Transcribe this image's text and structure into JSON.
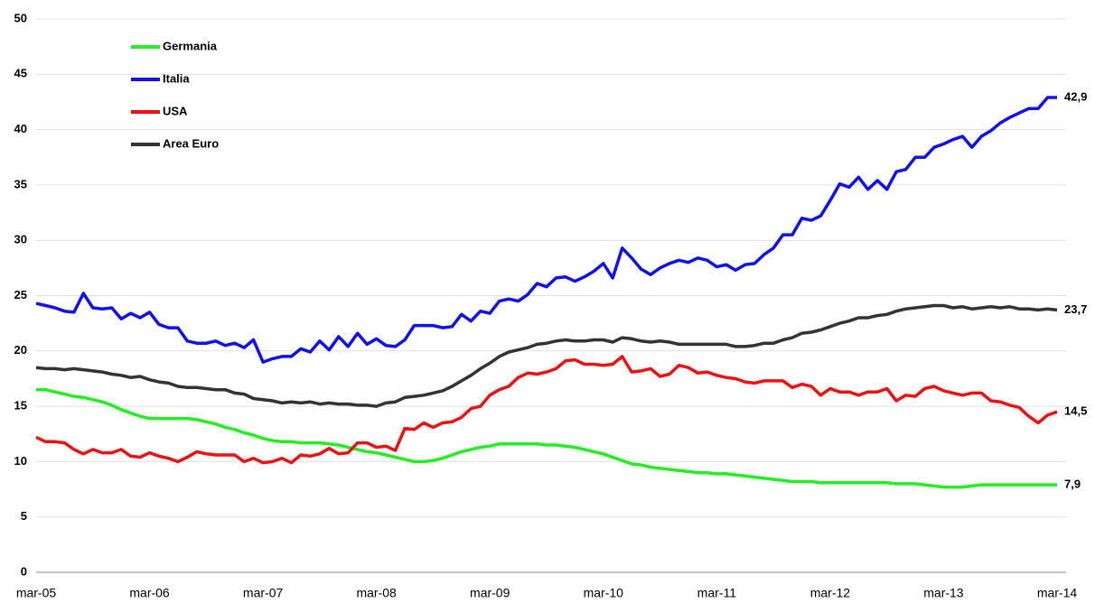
{
  "chart_data": {
    "type": "line",
    "categories": [
      "mar-05",
      null,
      null,
      null,
      null,
      null,
      null,
      null,
      null,
      null,
      null,
      null,
      "mar-06",
      null,
      null,
      null,
      null,
      null,
      null,
      null,
      null,
      null,
      null,
      null,
      "mar-07",
      null,
      null,
      null,
      null,
      null,
      null,
      null,
      null,
      null,
      null,
      null,
      "mar-08",
      null,
      null,
      null,
      null,
      null,
      null,
      null,
      null,
      null,
      null,
      null,
      "mar-09",
      null,
      null,
      null,
      null,
      null,
      null,
      null,
      null,
      null,
      null,
      null,
      "mar-10",
      null,
      null,
      null,
      null,
      null,
      null,
      null,
      null,
      null,
      null,
      null,
      "mar-11",
      null,
      null,
      null,
      null,
      null,
      null,
      null,
      null,
      null,
      null,
      null,
      "mar-12",
      null,
      null,
      null,
      null,
      null,
      null,
      null,
      null,
      null,
      null,
      null,
      "mar-13",
      null,
      null,
      null,
      null,
      null,
      null,
      null,
      null,
      null,
      null,
      null,
      "mar-14"
    ],
    "series": [
      {
        "name": "Germania",
        "color": "#22ee22",
        "values": [
          16.5,
          16.5,
          16.3,
          16.1,
          15.9,
          15.8,
          15.6,
          15.4,
          15.1,
          14.7,
          14.4,
          14.1,
          13.9,
          13.9,
          13.9,
          13.9,
          13.9,
          13.8,
          13.6,
          13.4,
          13.1,
          12.9,
          12.6,
          12.4,
          12.1,
          11.9,
          11.8,
          11.8,
          11.7,
          11.7,
          11.7,
          11.6,
          11.5,
          11.3,
          11.1,
          10.9,
          10.8,
          10.6,
          10.4,
          10.2,
          10.0,
          10.0,
          10.1,
          10.3,
          10.6,
          10.9,
          11.1,
          11.3,
          11.4,
          11.6,
          11.6,
          11.6,
          11.6,
          11.6,
          11.5,
          11.5,
          11.4,
          11.3,
          11.1,
          10.9,
          10.7,
          10.4,
          10.1,
          9.8,
          9.7,
          9.5,
          9.4,
          9.3,
          9.2,
          9.1,
          9.0,
          9.0,
          8.9,
          8.9,
          8.8,
          8.7,
          8.6,
          8.5,
          8.4,
          8.3,
          8.2,
          8.2,
          8.2,
          8.1,
          8.1,
          8.1,
          8.1,
          8.1,
          8.1,
          8.1,
          8.1,
          8.0,
          8.0,
          8.0,
          7.9,
          7.8,
          7.7,
          7.7,
          7.7,
          7.8,
          7.9,
          7.9,
          7.9,
          7.9,
          7.9,
          7.9,
          7.9,
          7.9,
          7.9
        ],
        "value_labels": [
          null,
          null,
          null,
          null,
          null,
          null,
          null,
          null,
          null,
          null,
          null,
          null,
          null,
          null,
          null,
          null,
          null,
          null,
          null,
          null,
          null,
          null,
          null,
          null,
          null,
          null,
          null,
          null,
          null,
          null,
          null,
          null,
          null,
          null,
          null,
          null,
          null,
          null,
          null,
          null,
          null,
          null,
          null,
          null,
          null,
          null,
          null,
          null,
          null,
          null,
          null,
          null,
          null,
          null,
          null,
          null,
          null,
          null,
          null,
          null,
          null,
          null,
          null,
          null,
          null,
          null,
          null,
          null,
          null,
          null,
          null,
          null,
          null,
          null,
          null,
          null,
          null,
          null,
          null,
          null,
          null,
          null,
          null,
          null,
          null,
          null,
          null,
          null,
          null,
          null,
          null,
          null,
          null,
          null,
          null,
          null,
          null,
          null,
          null,
          null,
          null,
          null,
          null,
          null,
          null,
          null,
          null,
          null,
          "7,9"
        ]
      },
      {
        "name": "Italia",
        "color": "#1111ee",
        "values": [
          24.3,
          24.1,
          23.9,
          23.6,
          23.5,
          25.2,
          23.9,
          23.8,
          23.9,
          22.9,
          23.4,
          23.0,
          23.5,
          22.4,
          22.1,
          22.1,
          20.9,
          20.7,
          20.7,
          20.9,
          20.5,
          20.7,
          20.3,
          21.0,
          19.0,
          19.3,
          19.5,
          19.5,
          20.2,
          19.9,
          20.9,
          20.1,
          21.3,
          20.4,
          21.6,
          20.6,
          21.1,
          20.5,
          20.4,
          21.0,
          22.3,
          22.3,
          22.3,
          22.1,
          22.2,
          23.3,
          22.7,
          23.6,
          23.4,
          24.5,
          24.7,
          24.5,
          25.1,
          26.1,
          25.8,
          26.6,
          26.7,
          26.3,
          26.7,
          27.2,
          27.9,
          26.6,
          29.3,
          28.4,
          27.4,
          26.9,
          27.5,
          27.9,
          28.2,
          28.0,
          28.4,
          28.2,
          27.6,
          27.8,
          27.3,
          27.8,
          27.9,
          28.7,
          29.3,
          30.5,
          30.5,
          32.0,
          31.8,
          32.2,
          33.6,
          35.1,
          34.8,
          35.7,
          34.6,
          35.4,
          34.6,
          36.2,
          36.4,
          37.5,
          37.5,
          38.4,
          38.7,
          39.1,
          39.4,
          38.4,
          39.4,
          39.9,
          40.6,
          41.1,
          41.5,
          41.9,
          41.9,
          42.9,
          42.9
        ],
        "value_labels": [
          null,
          null,
          null,
          null,
          null,
          null,
          null,
          null,
          null,
          null,
          null,
          null,
          null,
          null,
          null,
          null,
          null,
          null,
          null,
          null,
          null,
          null,
          null,
          null,
          null,
          null,
          null,
          null,
          null,
          null,
          null,
          null,
          null,
          null,
          null,
          null,
          null,
          null,
          null,
          null,
          null,
          null,
          null,
          null,
          null,
          null,
          null,
          null,
          null,
          null,
          null,
          null,
          null,
          null,
          null,
          null,
          null,
          null,
          null,
          null,
          null,
          null,
          null,
          null,
          null,
          null,
          null,
          null,
          null,
          null,
          null,
          null,
          null,
          null,
          null,
          null,
          null,
          null,
          null,
          null,
          null,
          null,
          null,
          null,
          null,
          null,
          null,
          null,
          null,
          null,
          null,
          null,
          null,
          null,
          null,
          null,
          null,
          null,
          null,
          null,
          null,
          null,
          null,
          null,
          null,
          null,
          null,
          null,
          "42,9"
        ]
      },
      {
        "name": "USA",
        "color": "#ee1111",
        "values": [
          12.2,
          11.8,
          11.8,
          11.7,
          11.1,
          10.7,
          11.1,
          10.8,
          10.8,
          11.1,
          10.5,
          10.4,
          10.8,
          10.5,
          10.3,
          10.0,
          10.4,
          10.9,
          10.7,
          10.6,
          10.6,
          10.6,
          10.0,
          10.3,
          9.9,
          10.0,
          10.3,
          9.9,
          10.6,
          10.5,
          10.7,
          11.2,
          10.7,
          10.8,
          11.7,
          11.7,
          11.3,
          11.4,
          11.0,
          13.0,
          12.9,
          13.5,
          13.1,
          13.5,
          13.6,
          14.0,
          14.8,
          15.0,
          16.0,
          16.5,
          16.8,
          17.6,
          18.0,
          17.9,
          18.1,
          18.4,
          19.1,
          19.2,
          18.8,
          18.8,
          18.7,
          18.8,
          19.5,
          18.1,
          18.2,
          18.4,
          17.7,
          17.9,
          18.7,
          18.5,
          18.0,
          18.1,
          17.8,
          17.6,
          17.5,
          17.2,
          17.1,
          17.3,
          17.3,
          17.3,
          16.7,
          17.0,
          16.8,
          16.0,
          16.6,
          16.3,
          16.3,
          16.0,
          16.3,
          16.3,
          16.6,
          15.5,
          16.0,
          15.9,
          16.6,
          16.8,
          16.4,
          16.2,
          16.0,
          16.2,
          16.2,
          15.5,
          15.4,
          15.1,
          14.9,
          14.1,
          13.5,
          14.2,
          14.5
        ],
        "value_labels": [
          null,
          null,
          null,
          null,
          null,
          null,
          null,
          null,
          null,
          null,
          null,
          null,
          null,
          null,
          null,
          null,
          null,
          null,
          null,
          null,
          null,
          null,
          null,
          null,
          null,
          null,
          null,
          null,
          null,
          null,
          null,
          null,
          null,
          null,
          null,
          null,
          null,
          null,
          null,
          null,
          null,
          null,
          null,
          null,
          null,
          null,
          null,
          null,
          null,
          null,
          null,
          null,
          null,
          null,
          null,
          null,
          null,
          null,
          null,
          null,
          null,
          null,
          null,
          null,
          null,
          null,
          null,
          null,
          null,
          null,
          null,
          null,
          null,
          null,
          null,
          null,
          null,
          null,
          null,
          null,
          null,
          null,
          null,
          null,
          null,
          null,
          null,
          null,
          null,
          null,
          null,
          null,
          null,
          null,
          null,
          null,
          null,
          null,
          null,
          null,
          null,
          null,
          null,
          null,
          null,
          null,
          null,
          null,
          "14,5"
        ]
      },
      {
        "name": "Area Euro",
        "color": "#333333",
        "values": [
          18.5,
          18.4,
          18.4,
          18.3,
          18.4,
          18.3,
          18.2,
          18.1,
          17.9,
          17.8,
          17.6,
          17.7,
          17.4,
          17.2,
          17.1,
          16.8,
          16.7,
          16.7,
          16.6,
          16.5,
          16.5,
          16.2,
          16.1,
          15.7,
          15.6,
          15.5,
          15.3,
          15.4,
          15.3,
          15.4,
          15.2,
          15.3,
          15.2,
          15.2,
          15.1,
          15.1,
          15.0,
          15.3,
          15.4,
          15.8,
          15.9,
          16.0,
          16.2,
          16.4,
          16.8,
          17.3,
          17.8,
          18.4,
          18.9,
          19.5,
          19.9,
          20.1,
          20.3,
          20.6,
          20.7,
          20.9,
          21.0,
          20.9,
          20.9,
          21.0,
          21.0,
          20.8,
          21.2,
          21.1,
          20.9,
          20.8,
          20.9,
          20.8,
          20.6,
          20.6,
          20.6,
          20.6,
          20.6,
          20.6,
          20.4,
          20.4,
          20.5,
          20.7,
          20.7,
          21.0,
          21.2,
          21.6,
          21.7,
          21.9,
          22.2,
          22.5,
          22.7,
          23.0,
          23.0,
          23.2,
          23.3,
          23.6,
          23.8,
          23.9,
          24.0,
          24.1,
          24.1,
          23.9,
          24.0,
          23.8,
          23.9,
          24.0,
          23.9,
          24.0,
          23.8,
          23.8,
          23.7,
          23.8,
          23.7
        ],
        "value_labels": [
          null,
          null,
          null,
          null,
          null,
          null,
          null,
          null,
          null,
          null,
          null,
          null,
          null,
          null,
          null,
          null,
          null,
          null,
          null,
          null,
          null,
          null,
          null,
          null,
          null,
          null,
          null,
          null,
          null,
          null,
          null,
          null,
          null,
          null,
          null,
          null,
          null,
          null,
          null,
          null,
          null,
          null,
          null,
          null,
          null,
          null,
          null,
          null,
          null,
          null,
          null,
          null,
          null,
          null,
          null,
          null,
          null,
          null,
          null,
          null,
          null,
          null,
          null,
          null,
          null,
          null,
          null,
          null,
          null,
          null,
          null,
          null,
          null,
          null,
          null,
          null,
          null,
          null,
          null,
          null,
          null,
          null,
          null,
          null,
          null,
          null,
          null,
          null,
          null,
          null,
          null,
          null,
          null,
          null,
          null,
          null,
          null,
          null,
          null,
          null,
          null,
          null,
          null,
          null,
          null,
          null,
          null,
          null,
          "23,7"
        ]
      }
    ],
    "ylim": [
      0,
      50
    ],
    "yticks": [
      0,
      5,
      10,
      15,
      20,
      25,
      30,
      35,
      40,
      45,
      50
    ],
    "grid": true,
    "legend": "top-left"
  }
}
